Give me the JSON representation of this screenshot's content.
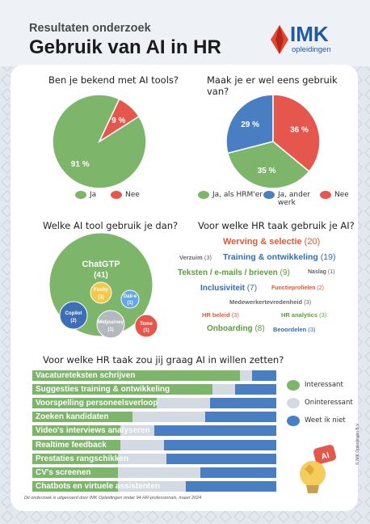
{
  "header": {
    "subtitle": "Resultaten onderzoek",
    "title": "Gebruik van AI in HR",
    "logo_text": "IMK",
    "logo_sub": "opleidingen"
  },
  "q1": {
    "question": "Ben je bekend met AI tools?",
    "chart_data": {
      "type": "pie",
      "labels": [
        "Ja",
        "Nee"
      ],
      "values": [
        91,
        9
      ],
      "value_labels": [
        "91 %",
        "9 %"
      ],
      "colors": [
        "#7db56b",
        "#e5574d"
      ]
    }
  },
  "q2": {
    "question": "Maak je er wel eens gebruik van?",
    "chart_data": {
      "type": "pie",
      "labels": [
        "Ja, als HRM'er",
        "Ja, ander werk",
        "Nee"
      ],
      "values": [
        35,
        29,
        36
      ],
      "value_labels": [
        "35 %",
        "29 %",
        "36 %"
      ],
      "colors": [
        "#7db56b",
        "#4a7ec2",
        "#e5574d"
      ]
    }
  },
  "q3": {
    "question": "Welke AI tool gebruik je dan?",
    "chart_data": {
      "type": "bubble",
      "tools": [
        {
          "name": "ChatGTP",
          "count": "(41)",
          "color": "#7db56b"
        },
        {
          "name": "Firefly",
          "count": "(1)",
          "color": "#f2c94c"
        },
        {
          "name": "Dall-e",
          "count": "(1)",
          "color": "#64a7e3"
        },
        {
          "name": "Copilot",
          "count": "(2)",
          "color": "#3d6fb6"
        },
        {
          "name": "Midjourney",
          "count": "(1)",
          "color": "#b4b9bf"
        },
        {
          "name": "Tome",
          "count": "(1)",
          "color": "#e5574d"
        }
      ]
    }
  },
  "q4": {
    "question": "Voor welke HR taak gebruik je AI?",
    "words": [
      {
        "text": "Werving & selectie",
        "count": "(20)",
        "color": "#e05a36"
      },
      {
        "text": "Verzuim",
        "count": "(3)",
        "color": "#666666"
      },
      {
        "text": "Training & ontwikkeling",
        "count": "(19)",
        "color": "#2f6fb3"
      },
      {
        "text": "Teksten / e-mails / brieven",
        "count": "(9)",
        "color": "#5a9e3c"
      },
      {
        "text": "Naslag",
        "count": "(1)",
        "color": "#666666"
      },
      {
        "text": "Inclusiviteit",
        "count": "(7)",
        "color": "#2f6fb3"
      },
      {
        "text": "Functieprofielen",
        "count": "(2)",
        "color": "#e05a36"
      },
      {
        "text": "Medewerkertevredenheid",
        "count": "(3)",
        "color": "#666666"
      },
      {
        "text": "HR beleid",
        "count": "(3)",
        "color": "#e05a36"
      },
      {
        "text": "HR analytics",
        "count": "(3)",
        "color": "#5a9e3c"
      },
      {
        "text": "Onboarding",
        "count": "(8)",
        "color": "#5a9e3c"
      },
      {
        "text": "Beoordelen",
        "count": "(3)",
        "color": "#2f6fb3"
      }
    ]
  },
  "q5": {
    "question": "Voor welke HR taak zou jij graag AI in willen zetten?",
    "chart_data": {
      "type": "bar",
      "stacked": true,
      "orientation": "horizontal",
      "unit": "percent",
      "categories": [
        "Vacatureteksten schrijven",
        "Suggesties training & ontwikkeling",
        "Voorspelling personeelsverloop",
        "Zoeken kandidaten",
        "Video's interviews analyseren",
        "Realtime feedback",
        "Prestaties rangschikken",
        "CV's screenen",
        "Chatbots en virtuele assistenten"
      ],
      "series": [
        {
          "name": "Interessant",
          "color": "#7db56b",
          "values": [
            85,
            74,
            51,
            41,
            36,
            36,
            35,
            35,
            35
          ]
        },
        {
          "name": "Oninteressant",
          "color": "#d3dae1",
          "values": [
            5,
            9,
            22,
            30,
            14,
            18,
            20,
            34,
            28
          ]
        },
        {
          "name": "Weet ik niet",
          "color": "#4a7ec2",
          "values": [
            10,
            17,
            27,
            29,
            50,
            46,
            45,
            31,
            37
          ]
        }
      ]
    }
  },
  "badge": "AI",
  "footnote": "Dit onderzoek is uitgevoerd door IMK Opleidingen onder 94 HR-professionals, maart 2024",
  "copyright": "© IMK Opleidingen B.V."
}
